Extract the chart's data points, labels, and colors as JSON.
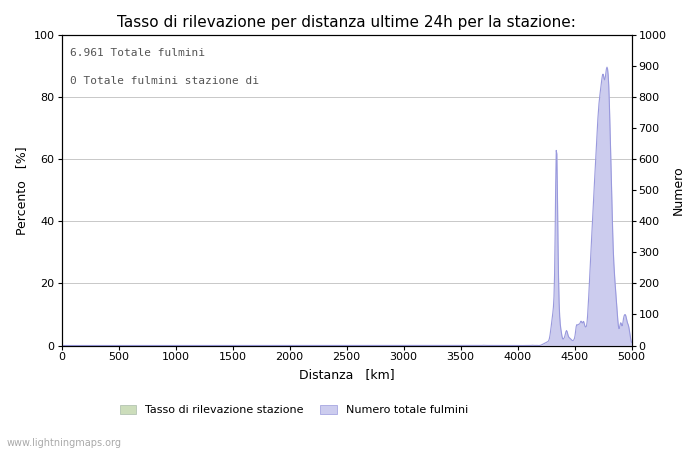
{
  "title": "Tasso di rilevazione per distanza ultime 24h per la stazione:",
  "xlabel": "Distanza   [km]",
  "ylabel_left": "Percento   [%]",
  "ylabel_right": "Numero",
  "annotation_line1": "6.961 Totale fulmini",
  "annotation_line2": "0 Totale fulmini stazione di",
  "watermark": "www.lightningmaps.org",
  "legend_green_label": "Tasso di rilevazione stazione",
  "legend_blue_label": "Numero totale fulmini",
  "xlim": [
    0,
    5000
  ],
  "ylim_left": [
    0,
    100
  ],
  "ylim_right": [
    0,
    1000
  ],
  "xticks": [
    0,
    500,
    1000,
    1500,
    2000,
    2500,
    3000,
    3500,
    4000,
    4500,
    5000
  ],
  "yticks_left": [
    0,
    20,
    40,
    60,
    80,
    100
  ],
  "yticks_right": [
    0,
    100,
    200,
    300,
    400,
    500,
    600,
    700,
    800,
    900,
    1000
  ],
  "bg_color": "#ffffff",
  "grid_color": "#c8c8c8",
  "line_color": "#9999dd",
  "fill_color": "#ccccee",
  "title_fontsize": 11,
  "label_fontsize": 9,
  "tick_fontsize": 8,
  "annotation_fontsize": 8,
  "watermark_fontsize": 7
}
